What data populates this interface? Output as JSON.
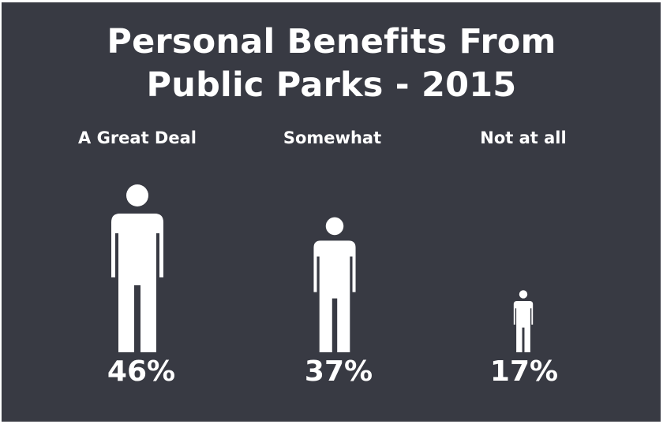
{
  "colors": {
    "background": "#383a43",
    "foreground": "#ffffff"
  },
  "chart_data": {
    "type": "bar",
    "title": "Personal Benefits From Public Parks - 2015",
    "title_lines": [
      "Personal Benefits From",
      "Public Parks - 2015"
    ],
    "categories": [
      "A Great Deal",
      "Somewhat",
      "Not at all"
    ],
    "values": [
      46,
      37,
      17
    ],
    "value_labels": [
      "46%",
      "37%",
      "17%"
    ],
    "unit": "%",
    "mark": "person-icon",
    "xlabel": "",
    "ylabel": "",
    "grid": false,
    "legend": "none"
  }
}
